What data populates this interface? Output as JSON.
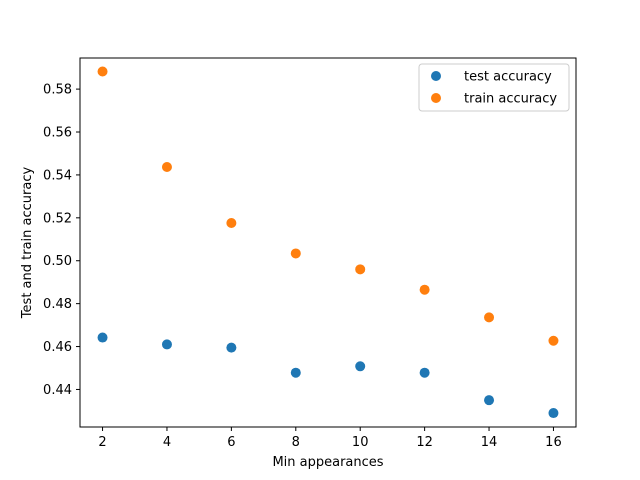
{
  "chart_data": {
    "type": "scatter",
    "title": "",
    "xlabel": "Min appearances",
    "ylabel": "Test and train accuracy",
    "x": [
      2,
      4,
      6,
      8,
      10,
      12,
      14,
      16
    ],
    "xticks": [
      2,
      4,
      6,
      8,
      10,
      12,
      14,
      16
    ],
    "yticks": [
      0.44,
      0.46,
      0.48,
      0.5,
      0.52,
      0.54,
      0.56,
      0.58
    ],
    "xlim": [
      1.3,
      16.7
    ],
    "ylim": [
      0.4225,
      0.5945
    ],
    "grid": false,
    "legend_position": "upper right",
    "series": [
      {
        "name": "test accuracy",
        "color": "#1f77b4",
        "values": [
          0.4642,
          0.461,
          0.4595,
          0.4478,
          0.4508,
          0.4478,
          0.435,
          0.429
        ]
      },
      {
        "name": "train accuracy",
        "color": "#ff7f0e",
        "values": [
          0.5882,
          0.5437,
          0.5176,
          0.5034,
          0.496,
          0.4865,
          0.4736,
          0.4627
        ]
      }
    ]
  }
}
